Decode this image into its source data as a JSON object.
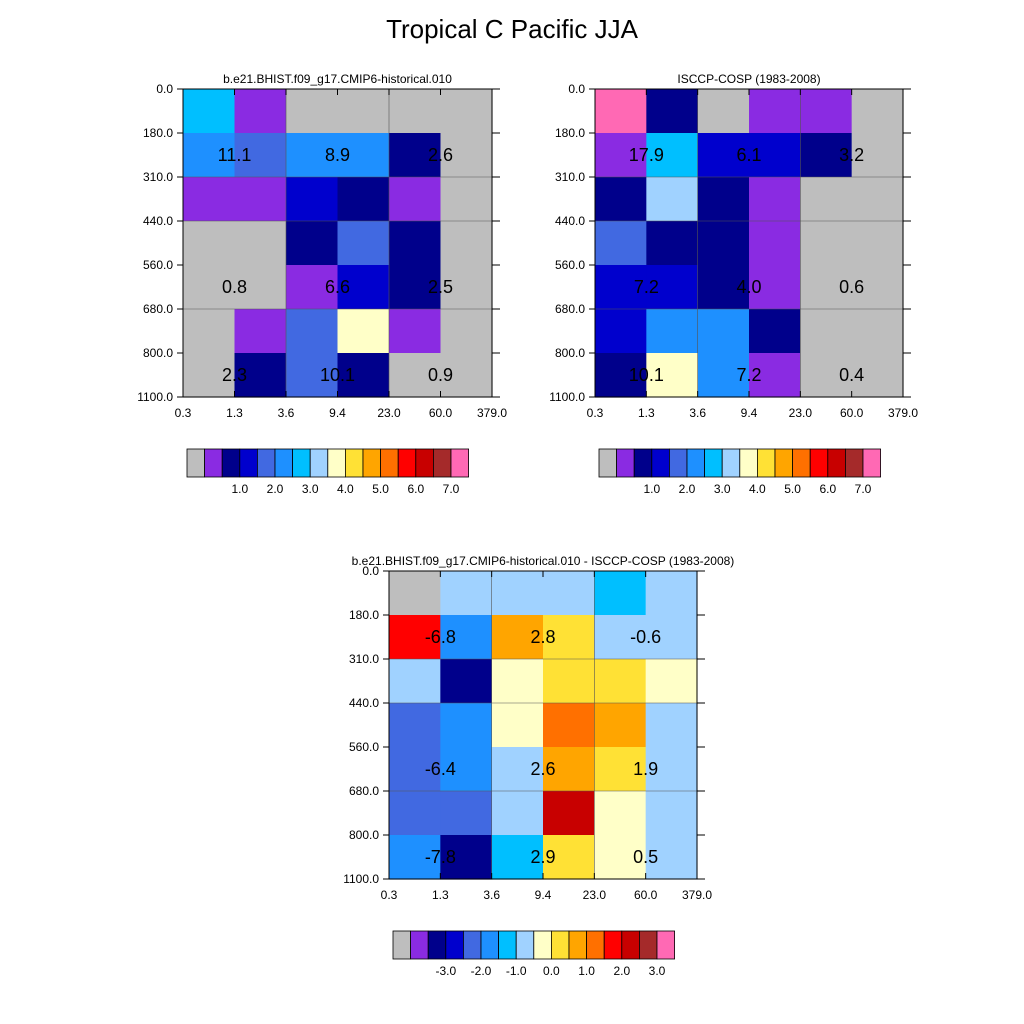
{
  "title": "Tropical C Pacific JJA",
  "missing_color": "#BEBEBE",
  "chart_data": [
    {
      "type": "heatmap",
      "title": "b.e21.BHIST.f09_g17.CMIP6-historical.010",
      "xlabel": "",
      "ylabel": "",
      "x_tick_labels": [
        "0.3",
        "1.3",
        "3.6",
        "9.4",
        "23.0",
        "60.0",
        "379.0"
      ],
      "y_tick_labels": [
        "0.0",
        "180.0",
        "310.0",
        "440.0",
        "560.0",
        "680.0",
        "800.0",
        "1100.0"
      ],
      "colorbar": {
        "labels": [
          "1.0",
          "2.0",
          "3.0",
          "4.0",
          "5.0",
          "6.0",
          "7.0"
        ],
        "colors": [
          "#BEBEBE",
          "#8A2BE2",
          "#00008B",
          "#0000CD",
          "#4169E1",
          "#1E90FF",
          "#00BFFF",
          "#A0D2FF",
          "#FFFFC8",
          "#FFE135",
          "#FFA500",
          "#FF7000",
          "#FF0000",
          "#C80000",
          "#A52A2A",
          "#FF69B4"
        ]
      },
      "cells_bin_index": [
        [
          6,
          1,
          0,
          0,
          0,
          0
        ],
        [
          5,
          4,
          5,
          5,
          2,
          0
        ],
        [
          1,
          1,
          3,
          2,
          1,
          0
        ],
        [
          0,
          0,
          2,
          4,
          2,
          0
        ],
        [
          0,
          0,
          1,
          3,
          2,
          0
        ],
        [
          0,
          1,
          4,
          8,
          1,
          0
        ],
        [
          0,
          2,
          4,
          2,
          0,
          0
        ]
      ],
      "annotations": [
        {
          "text": "11.1",
          "col": 0.5,
          "row": 1
        },
        {
          "text": "8.9",
          "col": 2.5,
          "row": 1
        },
        {
          "text": "2.6",
          "col": 4.5,
          "row": 1
        },
        {
          "text": "0.8",
          "col": 0.5,
          "row": 4
        },
        {
          "text": "6.6",
          "col": 2.5,
          "row": 4
        },
        {
          "text": "2.5",
          "col": 4.5,
          "row": 4
        },
        {
          "text": "2.3",
          "col": 0.5,
          "row": 6
        },
        {
          "text": "10.1",
          "col": 2.5,
          "row": 6
        },
        {
          "text": "0.9",
          "col": 4.5,
          "row": 6
        }
      ]
    },
    {
      "type": "heatmap",
      "title": "ISCCP-COSP (1983-2008)",
      "xlabel": "",
      "ylabel": "",
      "x_tick_labels": [
        "0.3",
        "1.3",
        "3.6",
        "9.4",
        "23.0",
        "60.0",
        "379.0"
      ],
      "y_tick_labels": [
        "0.0",
        "180.0",
        "310.0",
        "440.0",
        "560.0",
        "680.0",
        "800.0",
        "1100.0"
      ],
      "colorbar": {
        "labels": [
          "1.0",
          "2.0",
          "3.0",
          "4.0",
          "5.0",
          "6.0",
          "7.0"
        ],
        "colors": [
          "#BEBEBE",
          "#8A2BE2",
          "#00008B",
          "#0000CD",
          "#4169E1",
          "#1E90FF",
          "#00BFFF",
          "#A0D2FF",
          "#FFFFC8",
          "#FFE135",
          "#FFA500",
          "#FF7000",
          "#FF0000",
          "#C80000",
          "#A52A2A",
          "#FF69B4"
        ]
      },
      "cells_bin_index": [
        [
          15,
          2,
          0,
          1,
          1,
          0
        ],
        [
          1,
          6,
          3,
          3,
          2,
          0
        ],
        [
          2,
          7,
          2,
          1,
          0,
          0
        ],
        [
          4,
          2,
          2,
          1,
          0,
          0
        ],
        [
          3,
          3,
          2,
          1,
          0,
          0
        ],
        [
          3,
          5,
          5,
          2,
          0,
          0
        ],
        [
          2,
          8,
          5,
          1,
          0,
          0
        ]
      ],
      "annotations": [
        {
          "text": "17.9",
          "col": 0.5,
          "row": 1
        },
        {
          "text": "6.1",
          "col": 2.5,
          "row": 1
        },
        {
          "text": "3.2",
          "col": 4.5,
          "row": 1
        },
        {
          "text": "7.2",
          "col": 0.5,
          "row": 4
        },
        {
          "text": "4.0",
          "col": 2.5,
          "row": 4
        },
        {
          "text": "0.6",
          "col": 4.5,
          "row": 4
        },
        {
          "text": "10.1",
          "col": 0.5,
          "row": 6
        },
        {
          "text": "7.2",
          "col": 2.5,
          "row": 6
        },
        {
          "text": "0.4",
          "col": 4.5,
          "row": 6
        }
      ]
    },
    {
      "type": "heatmap",
      "title": "b.e21.BHIST.f09_g17.CMIP6-historical.010 - ISCCP-COSP (1983-2008)",
      "xlabel": "",
      "ylabel": "",
      "x_tick_labels": [
        "0.3",
        "1.3",
        "3.6",
        "9.4",
        "23.0",
        "60.0",
        "379.0"
      ],
      "y_tick_labels": [
        "0.0",
        "180.0",
        "310.0",
        "440.0",
        "560.0",
        "680.0",
        "800.0",
        "1100.0"
      ],
      "colorbar": {
        "labels": [
          "-3.0",
          "-2.0",
          "-1.0",
          "0.0",
          "1.0",
          "2.0",
          "3.0"
        ],
        "colors": [
          "#BEBEBE",
          "#8A2BE2",
          "#00008B",
          "#0000CD",
          "#4169E1",
          "#1E90FF",
          "#00BFFF",
          "#A0D2FF",
          "#FFFFC8",
          "#FFE135",
          "#FFA500",
          "#FF7000",
          "#FF0000",
          "#C80000",
          "#A52A2A",
          "#FF69B4"
        ]
      },
      "cells_bin_index": [
        [
          0,
          7,
          7,
          7,
          6,
          7
        ],
        [
          12,
          5,
          10,
          9,
          7,
          7
        ],
        [
          7,
          2,
          8,
          9,
          9,
          8
        ],
        [
          4,
          5,
          8,
          11,
          10,
          7
        ],
        [
          4,
          5,
          7,
          10,
          9,
          7
        ],
        [
          4,
          4,
          7,
          13,
          8,
          7
        ],
        [
          5,
          2,
          6,
          9,
          8,
          7
        ]
      ],
      "annotations": [
        {
          "text": "-6.8",
          "col": 0.5,
          "row": 1
        },
        {
          "text": "2.8",
          "col": 2.5,
          "row": 1
        },
        {
          "text": "-0.6",
          "col": 4.5,
          "row": 1
        },
        {
          "text": "-6.4",
          "col": 0.5,
          "row": 4
        },
        {
          "text": "2.6",
          "col": 2.5,
          "row": 4
        },
        {
          "text": "1.9",
          "col": 4.5,
          "row": 4
        },
        {
          "text": "-7.8",
          "col": 0.5,
          "row": 6
        },
        {
          "text": "2.9",
          "col": 2.5,
          "row": 6
        },
        {
          "text": "0.5",
          "col": 4.5,
          "row": 6
        }
      ]
    }
  ]
}
